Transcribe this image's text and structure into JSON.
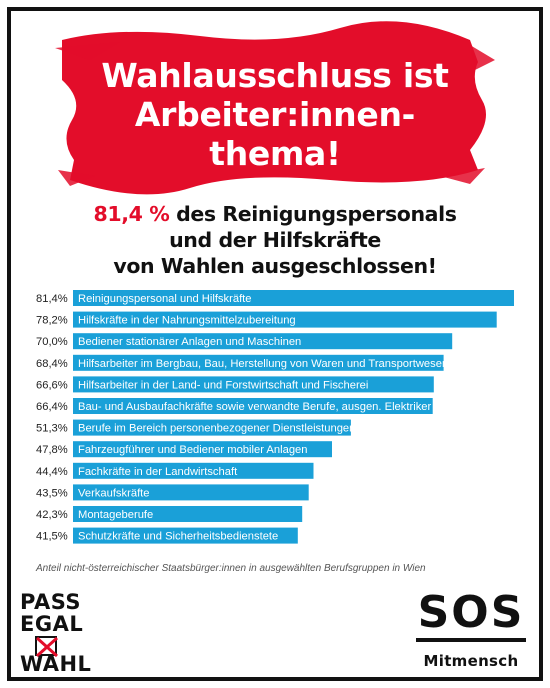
{
  "headline": {
    "line1": "Wahlausschluss ist",
    "line2": "Arbeiter:innen-",
    "line3": "thema!"
  },
  "subheadline": {
    "highlight": "81,4 %",
    "line1_rest": " des Reinigungspersonals",
    "line2": "und der Hilfskräfte",
    "line3": "von Wahlen ausgeschlossen!"
  },
  "colors": {
    "bar": "#1aa0d8",
    "accent": "#e30d2a",
    "text": "#111111"
  },
  "chart_data": {
    "type": "bar",
    "orientation": "horizontal",
    "categories": [
      "Reinigungspersonal und Hilfskräfte",
      "Hilfskräfte in der Nahrungsmittelzubereitung",
      "Bediener stationärer Anlagen und Maschinen",
      "Hilfsarbeiter im Bergbau, Bau, Herstellung von Waren und Transportwesen",
      "Hilfsarbeiter in der Land- und Forstwirtschaft und Fischerei",
      "Bau- und Ausbaufachkräfte sowie verwandte Berufe, ausgen. Elektriker",
      "Berufe im Bereich personenbezogener Dienstleistungen",
      "Fahrzeugführer und Bediener mobiler Anlagen",
      "Fachkräfte in der Landwirtschaft",
      "Verkaufskräfte",
      "Montageberufe",
      "Schutzkräfte und Sicherheitsbedienstete"
    ],
    "values": [
      81.4,
      78.2,
      70.0,
      68.4,
      66.6,
      66.4,
      51.3,
      47.8,
      44.4,
      43.5,
      42.3,
      41.5
    ],
    "value_labels": [
      "81,4%",
      "78,2%",
      "70,0%",
      "68,4%",
      "66,6%",
      "66,4%",
      "51,3%",
      "47,8%",
      "44,4%",
      "43,5%",
      "42,3%",
      "41,5%"
    ],
    "caption": "Anteil nicht-österreichischer Staatsbürger:innen in ausgewählten Berufsgruppen in Wien",
    "xlim": [
      0,
      100
    ],
    "grid": false,
    "legend": "none"
  },
  "logos": {
    "left": {
      "line1": "PASS",
      "line2": "EGAL",
      "line3": "WAHL"
    },
    "right": {
      "line1": "SOS",
      "line2": "Mitmensch"
    }
  }
}
